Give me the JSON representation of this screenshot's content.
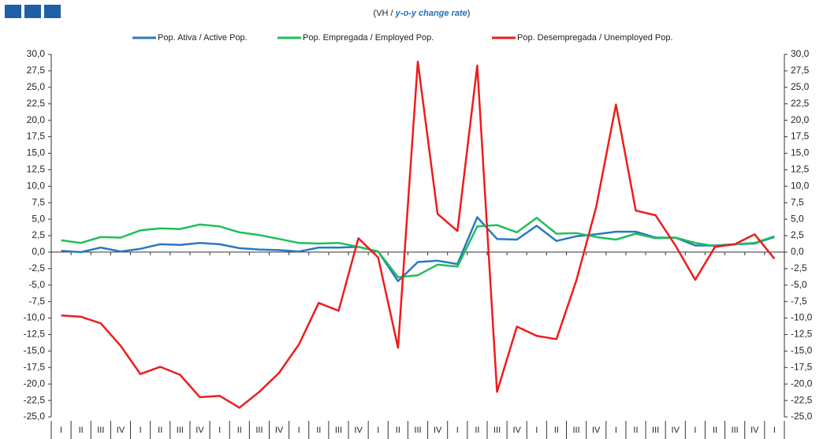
{
  "chart_data": {
    "type": "line",
    "subtitle": [
      "(VH / ",
      "y-o-y change rate",
      ")"
    ],
    "categories": [
      "I",
      "II",
      "III",
      "IV",
      "I",
      "II",
      "III",
      "IV",
      "I",
      "II",
      "III",
      "IV",
      "I",
      "II",
      "III",
      "IV",
      "I",
      "II",
      "III",
      "IV",
      "I",
      "II",
      "III",
      "IV",
      "I",
      "II",
      "III",
      "IV",
      "I",
      "II",
      "III",
      "IV",
      "I",
      "II",
      "III",
      "IV",
      "I"
    ],
    "series": [
      {
        "name": "Pop. Ativa / Active Pop.",
        "color": "#2a78c2",
        "values": [
          0.2,
          0.0,
          0.7,
          0.1,
          0.5,
          1.2,
          1.1,
          1.4,
          1.2,
          0.6,
          0.4,
          0.3,
          0.1,
          0.7,
          0.7,
          0.8,
          0.1,
          -4.4,
          -1.5,
          -1.3,
          -1.8,
          5.3,
          2.0,
          1.9,
          4.0,
          1.7,
          2.4,
          2.7,
          3.1,
          3.1,
          2.2,
          2.2,
          1.0,
          1.0,
          1.2,
          1.3,
          2.3
        ]
      },
      {
        "name": "Pop. Empregada / Employed Pop.",
        "color": "#1fbf5a",
        "values": [
          1.8,
          1.4,
          2.3,
          2.2,
          3.3,
          3.6,
          3.5,
          4.2,
          3.9,
          3.0,
          2.6,
          2.0,
          1.4,
          1.3,
          1.4,
          0.8,
          0.1,
          -3.8,
          -3.5,
          -1.9,
          -2.2,
          3.9,
          4.1,
          3.0,
          5.2,
          2.8,
          2.9,
          2.3,
          1.9,
          2.8,
          2.1,
          2.2,
          1.4,
          0.9,
          1.2,
          1.4,
          2.4
        ]
      },
      {
        "name": "Pop. Desempregada / Unemployed Pop.",
        "color": "#ee1c1c",
        "values": [
          -9.6,
          -9.8,
          -10.8,
          -14.2,
          -18.5,
          -17.4,
          -18.6,
          -22.0,
          -21.8,
          -23.6,
          -21.2,
          -18.3,
          -14.0,
          -7.7,
          -8.9,
          2.1,
          -0.8,
          -14.5,
          28.9,
          5.8,
          3.2,
          28.3,
          -21.2,
          -11.3,
          -12.7,
          -13.2,
          -4.3,
          6.8,
          22.4,
          6.3,
          5.6,
          1.0,
          -4.2,
          0.8,
          1.2,
          2.7,
          -1.0
        ]
      }
    ],
    "ylim": [
      -25,
      30
    ],
    "yticks": [
      {
        "value": 30,
        "label": "30,0"
      },
      {
        "value": 27.5,
        "label": "27,5"
      },
      {
        "value": 25,
        "label": "25,0"
      },
      {
        "value": 22.5,
        "label": "22,5"
      },
      {
        "value": 20,
        "label": "20,0"
      },
      {
        "value": 17.5,
        "label": "17,5"
      },
      {
        "value": 15,
        "label": "15,0"
      },
      {
        "value": 12.5,
        "label": "12,5"
      },
      {
        "value": 10,
        "label": "10,0"
      },
      {
        "value": 7.5,
        "label": "7,5"
      },
      {
        "value": 5,
        "label": "5,0"
      },
      {
        "value": 2.5,
        "label": "2,5"
      },
      {
        "value": 0,
        "label": "0,0"
      },
      {
        "value": -2.5,
        "label": "-2,5"
      },
      {
        "value": -5,
        "label": "-5,0"
      },
      {
        "value": -7.5,
        "label": "-7,5"
      },
      {
        "value": -10,
        "label": "-10,0"
      },
      {
        "value": -12.5,
        "label": "-12,5"
      },
      {
        "value": -15,
        "label": "-15,0"
      },
      {
        "value": -17.5,
        "label": "-17,5"
      },
      {
        "value": -20,
        "label": "-20,0"
      },
      {
        "value": -22.5,
        "label": "-22,5"
      },
      {
        "value": -25,
        "label": "-25,0"
      }
    ],
    "y2lim": [
      -25,
      30
    ],
    "y2ticks": [
      {
        "value": 30,
        "label": "30,0"
      },
      {
        "value": 27.5,
        "label": "27,5"
      },
      {
        "value": 25,
        "label": "25,0"
      },
      {
        "value": 22.5,
        "label": "22,5"
      },
      {
        "value": 20,
        "label": "20,0"
      },
      {
        "value": 17.5,
        "label": "17,5"
      },
      {
        "value": 15,
        "label": "15,0"
      },
      {
        "value": 12.5,
        "label": "12,5"
      },
      {
        "value": 10,
        "label": "10,0"
      },
      {
        "value": 7.5,
        "label": "7,5"
      },
      {
        "value": 5,
        "label": "5,0"
      },
      {
        "value": 2.5,
        "label": "2,5"
      },
      {
        "value": 0,
        "label": "0,0"
      },
      {
        "value": -2.5,
        "label": "-2,5"
      },
      {
        "value": -5,
        "label": "-5,0"
      },
      {
        "value": -7.5,
        "label": "-7,5"
      },
      {
        "value": -10,
        "label": "-10,0"
      },
      {
        "value": -12.5,
        "label": "-12,5"
      },
      {
        "value": -15,
        "label": "-15,0"
      },
      {
        "value": -17.5,
        "label": "-17,5"
      },
      {
        "value": -20,
        "label": "-20,0"
      },
      {
        "value": -22.5,
        "label": "-22,5"
      },
      {
        "value": -25,
        "label": "-25,0"
      }
    ],
    "grid": false,
    "legend": "top"
  }
}
